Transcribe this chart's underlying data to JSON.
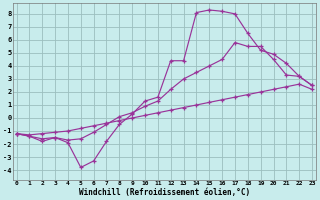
{
  "bg_color": "#c8ecec",
  "grid_color": "#9bbebe",
  "line_color": "#993399",
  "xlim": [
    -0.3,
    23.3
  ],
  "ylim": [
    -4.8,
    8.8
  ],
  "xticks": [
    0,
    1,
    2,
    3,
    4,
    5,
    6,
    7,
    8,
    9,
    10,
    11,
    12,
    13,
    14,
    15,
    16,
    17,
    18,
    19,
    20,
    21,
    22,
    23
  ],
  "yticks": [
    -4,
    -3,
    -2,
    -1,
    0,
    1,
    2,
    3,
    4,
    5,
    6,
    7,
    8
  ],
  "xlabel": "Windchill (Refroidissement éolien,°C)",
  "curve1_x": [
    0,
    1,
    2,
    3,
    4,
    5,
    6,
    7,
    8,
    9,
    10,
    11,
    12,
    13,
    14,
    15,
    16,
    17,
    18,
    19,
    20,
    21,
    22,
    23
  ],
  "curve1_y": [
    -1.2,
    -1.4,
    -1.8,
    -1.5,
    -1.9,
    -3.8,
    -3.3,
    -1.8,
    -0.5,
    0.3,
    1.3,
    1.6,
    4.4,
    4.4,
    8.1,
    8.3,
    8.2,
    8.0,
    6.5,
    5.2,
    4.9,
    4.2,
    3.2,
    2.5
  ],
  "curve2_x": [
    0,
    1,
    2,
    3,
    4,
    5,
    6,
    7,
    8,
    9,
    10,
    11,
    12,
    13,
    14,
    15,
    16,
    17,
    18,
    19,
    20,
    21,
    22,
    23
  ],
  "curve2_y": [
    -1.2,
    -1.4,
    -1.6,
    -1.5,
    -1.7,
    -1.6,
    -1.1,
    -0.5,
    0.1,
    0.4,
    0.9,
    1.3,
    2.2,
    3.0,
    3.5,
    4.0,
    4.5,
    5.8,
    5.5,
    5.5,
    4.5,
    3.3,
    3.2,
    2.5
  ],
  "curve3_x": [
    0,
    1,
    2,
    3,
    4,
    5,
    6,
    7,
    8,
    9,
    10,
    11,
    12,
    13,
    14,
    15,
    16,
    17,
    18,
    19,
    20,
    21,
    22,
    23
  ],
  "curve3_y": [
    -1.2,
    -1.3,
    -1.2,
    -1.1,
    -1.0,
    -0.8,
    -0.6,
    -0.4,
    -0.2,
    0.0,
    0.2,
    0.4,
    0.6,
    0.8,
    1.0,
    1.2,
    1.4,
    1.6,
    1.8,
    2.0,
    2.2,
    2.4,
    2.6,
    2.2
  ]
}
